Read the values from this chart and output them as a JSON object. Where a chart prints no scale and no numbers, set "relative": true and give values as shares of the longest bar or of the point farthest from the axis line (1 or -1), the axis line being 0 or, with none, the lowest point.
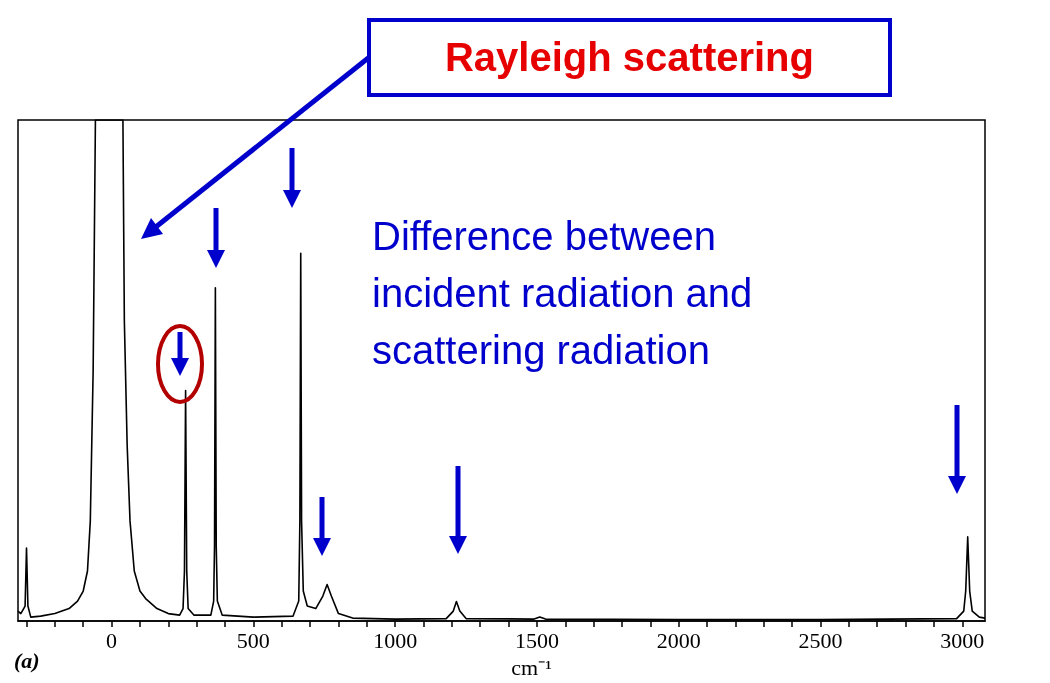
{
  "chart_data": {
    "type": "line",
    "relative": true,
    "xlabel": "cm⁻¹",
    "color": "#000000",
    "marker": "none",
    "line_style": "solid",
    "grid": false,
    "xlim": [
      -330,
      3080
    ],
    "xticks": [
      {
        "value": -300,
        "label": null
      },
      {
        "value": -200,
        "label": null
      },
      {
        "value": -100,
        "label": null
      },
      0,
      {
        "value": 100,
        "label": null
      },
      {
        "value": 200,
        "label": null
      },
      {
        "value": 300,
        "label": null
      },
      {
        "value": 400,
        "label": null
      },
      500,
      {
        "value": 600,
        "label": null
      },
      {
        "value": 700,
        "label": null
      },
      {
        "value": 800,
        "label": null
      },
      {
        "value": 900,
        "label": null
      },
      1000,
      {
        "value": 1100,
        "label": null
      },
      {
        "value": 1200,
        "label": null
      },
      {
        "value": 1300,
        "label": null
      },
      {
        "value": 1400,
        "label": null
      },
      1500,
      {
        "value": 1600,
        "label": null
      },
      {
        "value": 1700,
        "label": null
      },
      {
        "value": 1800,
        "label": null
      },
      {
        "value": 1900,
        "label": null
      },
      2000,
      {
        "value": 2100,
        "label": null
      },
      {
        "value": 2200,
        "label": null
      },
      {
        "value": 2300,
        "label": null
      },
      {
        "value": 2400,
        "label": null
      },
      2500,
      {
        "value": 2600,
        "label": null
      },
      {
        "value": 2700,
        "label": null
      },
      {
        "value": 2800,
        "label": null
      },
      {
        "value": 2900,
        "label": null
      },
      3000
    ],
    "x": [
      -330,
      -320,
      -305,
      -300,
      -295,
      -285,
      -250,
      -200,
      -150,
      -120,
      -100,
      -85,
      -75,
      -65,
      -57,
      40,
      45,
      55,
      65,
      80,
      100,
      120,
      160,
      200,
      240,
      252,
      257,
      261,
      265,
      270,
      290,
      350,
      360,
      363,
      366,
      369,
      373,
      390,
      500,
      640,
      660,
      664,
      667,
      670,
      676,
      690,
      720,
      745,
      760,
      775,
      800,
      850,
      1000,
      1180,
      1205,
      1216,
      1228,
      1250,
      1490,
      1510,
      1530,
      2000,
      2500,
      2980,
      3005,
      3012,
      3019,
      3026,
      3035,
      3060,
      3080
    ],
    "values": [
      0.02,
      0.015,
      0.03,
      0.146,
      0.03,
      0.008,
      0.01,
      0.015,
      0.025,
      0.04,
      0.06,
      0.1,
      0.2,
      0.5,
      1,
      1,
      0.6,
      0.35,
      0.2,
      0.1,
      0.06,
      0.045,
      0.025,
      0.015,
      0.012,
      0.025,
      0.1,
      0.46,
      0.1,
      0.025,
      0.012,
      0.012,
      0.04,
      0.15,
      0.665,
      0.15,
      0.04,
      0.012,
      0.008,
      0.01,
      0.04,
      0.2,
      0.734,
      0.2,
      0.06,
      0.03,
      0.025,
      0.05,
      0.073,
      0.05,
      0.015,
      0.006,
      0.004,
      0.005,
      0.02,
      0.039,
      0.02,
      0.005,
      0.004,
      0.008,
      0.004,
      0.003,
      0.003,
      0.005,
      0.02,
      0.06,
      0.168,
      0.06,
      0.02,
      0.008,
      0.006
    ],
    "annotations": [
      "Rayleigh scattering",
      "Difference between incident radiation and scattering radiation",
      "(a)"
    ]
  }
}
